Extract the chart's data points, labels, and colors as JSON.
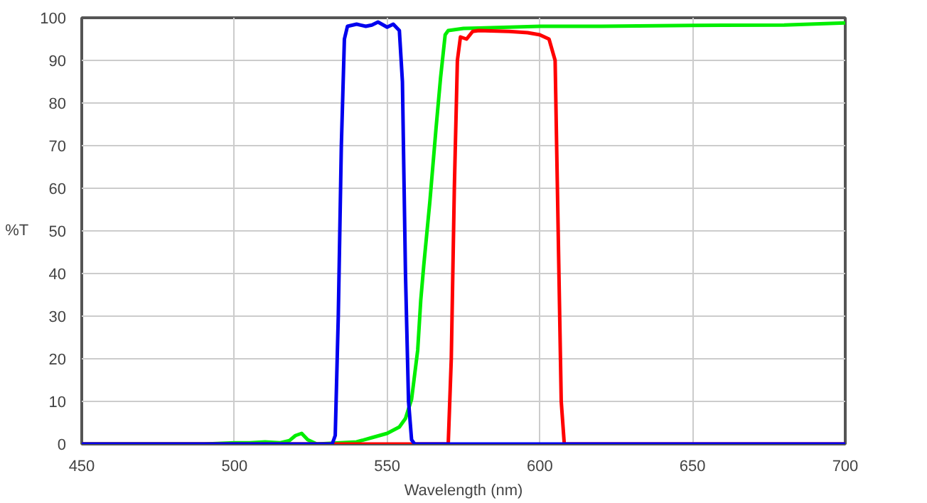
{
  "chart_data": {
    "type": "line",
    "xlabel": "Wavelength (nm)",
    "ylabel": "%T",
    "xlim": [
      450,
      700
    ],
    "ylim": [
      0,
      100
    ],
    "xticks": [
      450,
      500,
      550,
      600,
      650,
      700
    ],
    "yticks": [
      0,
      10,
      20,
      30,
      40,
      50,
      60,
      70,
      80,
      90,
      100
    ],
    "grid": true,
    "series": [
      {
        "color": "#00ee00",
        "x": [
          450,
          490,
          500,
          505,
          510,
          515,
          518,
          520,
          522,
          524,
          527,
          540,
          545,
          550,
          554,
          556,
          558,
          560,
          561,
          562,
          564,
          566,
          567.5,
          569,
          570,
          575,
          580,
          590,
          600,
          620,
          650,
          680,
          700
        ],
        "values": [
          0,
          0,
          0.3,
          0.3,
          0.5,
          0.3,
          0.8,
          2,
          2.5,
          1,
          0,
          0.5,
          1.5,
          2.5,
          4,
          6,
          10.5,
          22,
          33.7,
          42,
          57,
          74,
          86,
          96,
          97,
          97.5,
          97.6,
          97.8,
          98,
          98,
          98.2,
          98.3,
          98.8
        ]
      },
      {
        "color": "#ff0000",
        "x": [
          450,
          570,
          571,
          572,
          573,
          574,
          576,
          578,
          580,
          590,
          596,
          600,
          603,
          605,
          606,
          607,
          608,
          700
        ],
        "values": [
          0,
          0,
          20,
          60,
          90,
          95.5,
          95,
          96.8,
          97,
          96.8,
          96.5,
          96,
          95,
          90,
          50,
          10,
          0,
          0
        ]
      },
      {
        "color": "#0000ee",
        "x": [
          450,
          532,
          533,
          534,
          535,
          536,
          537,
          540,
          543,
          545,
          547,
          550,
          552,
          554,
          555,
          556,
          557,
          558,
          559,
          700
        ],
        "values": [
          0,
          0,
          2,
          30,
          70,
          95,
          98,
          98.5,
          98,
          98.3,
          99,
          97.8,
          98.5,
          97,
          85,
          40,
          10,
          1,
          0,
          0
        ]
      }
    ]
  }
}
